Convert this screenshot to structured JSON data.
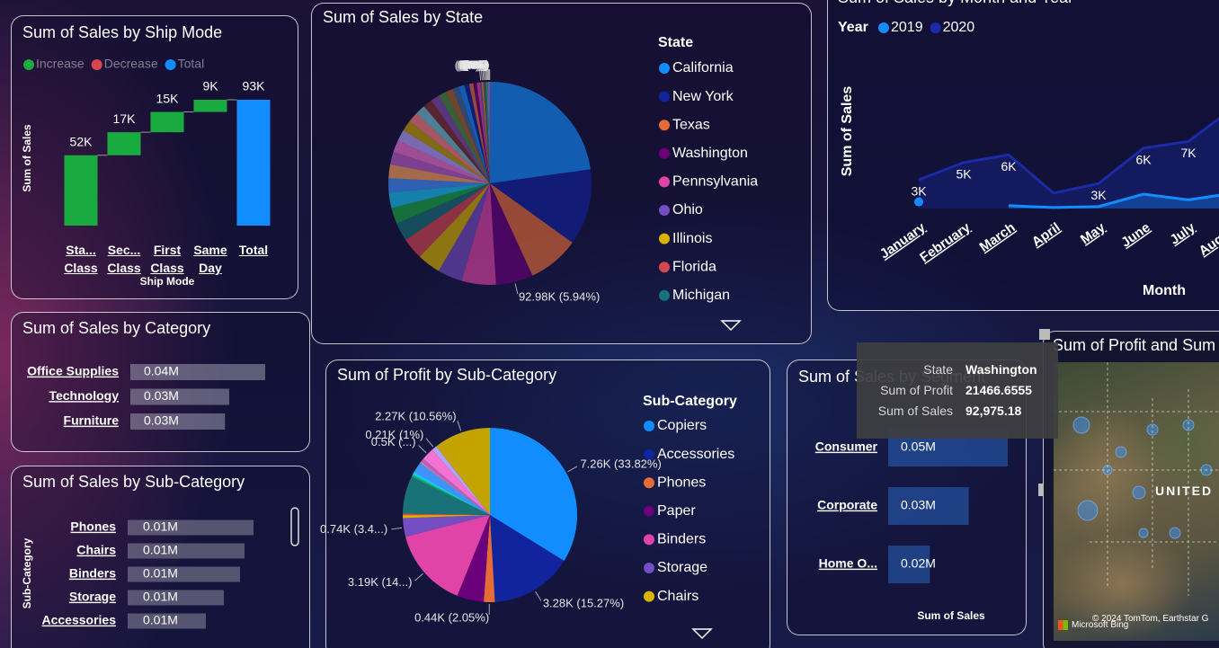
{
  "chart_data": [
    {
      "type": "waterfall",
      "title": "Sum of Sales by Ship Mode",
      "legend": [
        {
          "name": "Increase",
          "color": "#1AAB40"
        },
        {
          "name": "Decrease",
          "color": "#D64550"
        },
        {
          "name": "Total",
          "color": "#118DFF"
        }
      ],
      "categories": [
        "Sta... Class",
        "Sec... Class",
        "First Class",
        "Same Day",
        "Total"
      ],
      "values": [
        52000,
        17000,
        15000,
        9000,
        93000
      ],
      "value_labels": [
        "52K",
        "17K",
        "15K",
        "9K",
        "93K"
      ],
      "x_label": "Ship Mode",
      "y_label": "Sum of Sales"
    },
    {
      "type": "pie",
      "title": "Sum of Sales by State",
      "legend_title": "State",
      "categories": [
        "California",
        "New York",
        "Texas",
        "Washington",
        "Pennsylvania",
        "Ohio",
        "Illinois",
        "Florida",
        "Michigan",
        null,
        null,
        null,
        null,
        null,
        null,
        null,
        null,
        null,
        null,
        null,
        null,
        null,
        null,
        null,
        null,
        null,
        null,
        null,
        null,
        null,
        null,
        null,
        null,
        null,
        null,
        null,
        null,
        null,
        null
      ],
      "values": [
        356765,
        190000,
        128000,
        92975.18,
        85000,
        62000,
        58000,
        54000,
        46000,
        40000,
        38000,
        36000,
        34000,
        32000,
        30000,
        28000,
        27000,
        26000,
        25000,
        23000,
        22000,
        20000,
        18000,
        16000,
        14000,
        12000,
        10000,
        9000,
        8000,
        4000,
        3500,
        3000,
        2800,
        2500,
        2200,
        2000,
        1800,
        1500,
        1200
      ],
      "value_labels": [
        null,
        null,
        null,
        "92.98K (5.94%)",
        null,
        null,
        null,
        null,
        null,
        null,
        null,
        null,
        null,
        null,
        null,
        null,
        null,
        null,
        null,
        null,
        null,
        null,
        null,
        null,
        null,
        null,
        null,
        null,
        null,
        "(0%)",
        "(0%)",
        "(0%)",
        "(0%)",
        "(0%)",
        "(0%)",
        "(0%)",
        "(0%)",
        "(0%)",
        "(0%)"
      ],
      "palette": [
        "#118DFF",
        "#12239E",
        "#E66C37",
        "#6B007B",
        "#E044A7",
        "#744EC2",
        "#D9B300",
        "#D64550",
        "#197278",
        "#1AAB40",
        "#15C6F4",
        "#4092FF",
        "#FFA058",
        "#BE5DC9",
        "#F472D0",
        "#B5A1FF",
        "#C4A200",
        "#FF8080",
        "#72C0CC",
        "#7F312F",
        "#834DA8",
        "#4B8F3C",
        "#A6662B",
        "#3D6B9E"
      ]
    },
    {
      "type": "line",
      "title": "Sum of Sales by Month and Year",
      "legend_title": "Year",
      "categories": [
        "January",
        "February",
        "March",
        "April",
        "May",
        "June",
        "July",
        "August"
      ],
      "series": [
        {
          "name": "2019",
          "color": "#118DFF",
          "values": [
            700,
            null,
            300,
            100,
            200,
            1500,
            900,
            1600
          ]
        },
        {
          "name": "2020",
          "color": "#1B2AA8",
          "values": [
            3000,
            4800,
            5600,
            1600,
            2600,
            6300,
            7000,
            10500
          ],
          "value_labels": [
            "3K",
            "5K",
            "6K",
            null,
            "3K",
            "6K",
            "7K",
            null
          ]
        }
      ],
      "x_label": "Month",
      "y_label": "Sum of Sales"
    },
    {
      "type": "bar",
      "title": "Sum of Sales by Category",
      "categories": [
        "Office Supplies",
        "Technology",
        "Furniture"
      ],
      "values": [
        38200,
        28000,
        26800
      ],
      "value_labels": [
        "0.04M",
        "0.03M",
        "0.03M"
      ],
      "color": "#9a9aae"
    },
    {
      "type": "bar",
      "title": "Sum of Sales by Sub-Category",
      "categories": [
        "Phones",
        "Chairs",
        "Binders",
        "Storage",
        "Accessories"
      ],
      "values": [
        14000,
        13000,
        12500,
        10700,
        8700
      ],
      "value_labels": [
        "0.01M",
        "0.01M",
        "0.01M",
        "0.01M",
        "0.01M"
      ],
      "color": "#8a8a9c",
      "y_label": "Sub-Category"
    },
    {
      "type": "pie",
      "title": "Sum of Profit by Sub-Category",
      "legend_title": "Sub-Category",
      "categories": [
        "Copiers",
        "Accessories",
        "Phones",
        "Paper",
        "Binders",
        "Storage",
        "Chairs",
        null,
        null,
        null,
        null,
        null,
        null,
        null,
        null,
        null,
        null
      ],
      "values": [
        7260,
        3278,
        440,
        1070,
        3190,
        740,
        120,
        60,
        1492,
        80,
        150,
        420,
        40,
        150,
        500,
        210,
        2267
      ],
      "value_labels": [
        "7.26K (33.82%)",
        "3.28K (15.27%)",
        "0.44K (2.05%)",
        null,
        "3.19K (14...)",
        "0.74K (3.4...)",
        null,
        null,
        null,
        null,
        null,
        null,
        null,
        null,
        "0.5K (...)",
        "0.21K (1%)",
        "2.27K (10.56%)"
      ],
      "palette": [
        "#118DFF",
        "#12239E",
        "#E66C37",
        "#6B007B",
        "#E044A7",
        "#744EC2",
        "#D9B300",
        "#D64550",
        "#197278",
        "#1AAB40",
        "#15C6F4",
        "#4092FF",
        "#FFA058",
        "#BE5DC9",
        "#F472D0",
        "#B5A1FF",
        "#C4A200"
      ]
    },
    {
      "type": "bar",
      "title": "Sum of Sales by Segment",
      "categories": [
        "Consumer",
        "Corporate",
        "Home O..."
      ],
      "values": [
        46000,
        31000,
        16000
      ],
      "value_labels": [
        "0.05M",
        "0.03M",
        "0.02M"
      ],
      "color": "#2a64c0",
      "x_label": "Sum of Sales"
    },
    {
      "type": "map",
      "title": "Sum of Profit and Sum",
      "place_label": "UNITED",
      "attribution": "© 2024 TomTom, Earthstar G",
      "credit": "Microsoft Bing"
    }
  ],
  "tooltip": {
    "rows": [
      [
        "State",
        "Washington"
      ],
      [
        "Sum of Profit",
        "21466.6555"
      ],
      [
        "Sum of Sales",
        "92,975.18"
      ]
    ]
  }
}
